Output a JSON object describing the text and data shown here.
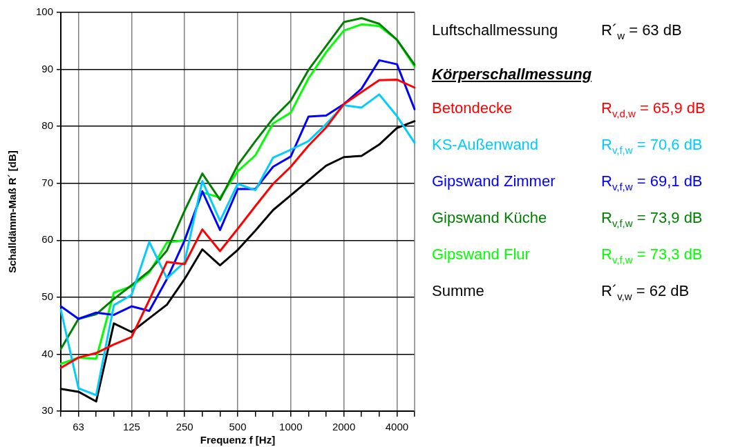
{
  "chart_data": {
    "type": "line",
    "xlabel": "Frequenz f [Hz]",
    "ylabel": "Schalldämm-Maß R´ [dB]",
    "categories": [
      null,
      "63",
      null,
      null,
      "125",
      null,
      null,
      "250",
      null,
      null,
      "500",
      null,
      null,
      "1000",
      null,
      null,
      "2000",
      null,
      null,
      "4000",
      null
    ],
    "series": [
      {
        "name": "Betondecke",
        "color": "#ff0000",
        "values": [
          37.6,
          39.4,
          40.2,
          41.7,
          43.0,
          49.5,
          56.2,
          55.8,
          61.9,
          58.1,
          62.0,
          66.0,
          69.9,
          72.9,
          76.6,
          79.8,
          83.9,
          86.0,
          88.1,
          88.2,
          86.8
        ]
      },
      {
        "name": "KS-Außenwand",
        "color": "#00ccff",
        "values": [
          47.8,
          34.0,
          32.8,
          48.6,
          50.4,
          59.7,
          53.3,
          56.2,
          70.4,
          63.4,
          69.9,
          68.8,
          74.5,
          75.9,
          77.4,
          80.4,
          83.7,
          83.3,
          85.6,
          81.8,
          77.1
        ]
      },
      {
        "name": "Gipswand Zimmer",
        "color": "#0000ff",
        "values": [
          48.4,
          46.2,
          47.3,
          46.9,
          48.4,
          47.6,
          53.2,
          60.0,
          68.6,
          61.8,
          69.0,
          69.0,
          72.9,
          74.7,
          81.7,
          81.9,
          83.9,
          86.6,
          91.6,
          90.9,
          83.0
        ]
      },
      {
        "name": "Gipswand Küche",
        "color": "#008000",
        "values": [
          40.9,
          46.2,
          47.0,
          49.7,
          52.1,
          54.6,
          58.2,
          65.2,
          71.7,
          67.1,
          73.2,
          77.4,
          81.4,
          84.5,
          89.9,
          94.1,
          98.3,
          99.0,
          98.0,
          95.2,
          90.8
        ]
      },
      {
        "name": "Gipswand Flur",
        "color": "#00ff00",
        "values": [
          38.3,
          39.4,
          39.2,
          50.8,
          51.9,
          54.3,
          59.6,
          60.0,
          68.4,
          67.5,
          72.1,
          74.9,
          80.5,
          82.4,
          88.4,
          93.0,
          96.8,
          97.9,
          97.6,
          95.2,
          90.5
        ]
      },
      {
        "name": "Summe",
        "color": "#000000",
        "values": [
          33.9,
          33.4,
          31.7,
          45.4,
          43.9,
          46.3,
          48.7,
          53.2,
          58.4,
          55.6,
          58.3,
          61.7,
          65.3,
          67.9,
          70.5,
          73.1,
          74.6,
          74.8,
          76.8,
          79.7,
          80.9
        ]
      }
    ],
    "ylim": [
      30,
      100
    ],
    "yticks": [
      30,
      40,
      50,
      60,
      70,
      80,
      90,
      100
    ],
    "grid": true,
    "legend": "right",
    "annotations": [
      "Luftschallmessung",
      "R´$_{w}$ = 63 dB",
      "Körperschallmessung",
      "R$_{v,d,w}$ = 65,9 dB",
      "R$_{v,f,w}$ = 70,6 dB",
      "R$_{v,f,w}$ = 69,1 dB",
      "R$_{v,f,w}$ = 73,9 dB",
      "R$_{v,f,w}$ = 73,3 dB",
      "R´$_{v,w}$ = 62 dB"
    ]
  }
}
